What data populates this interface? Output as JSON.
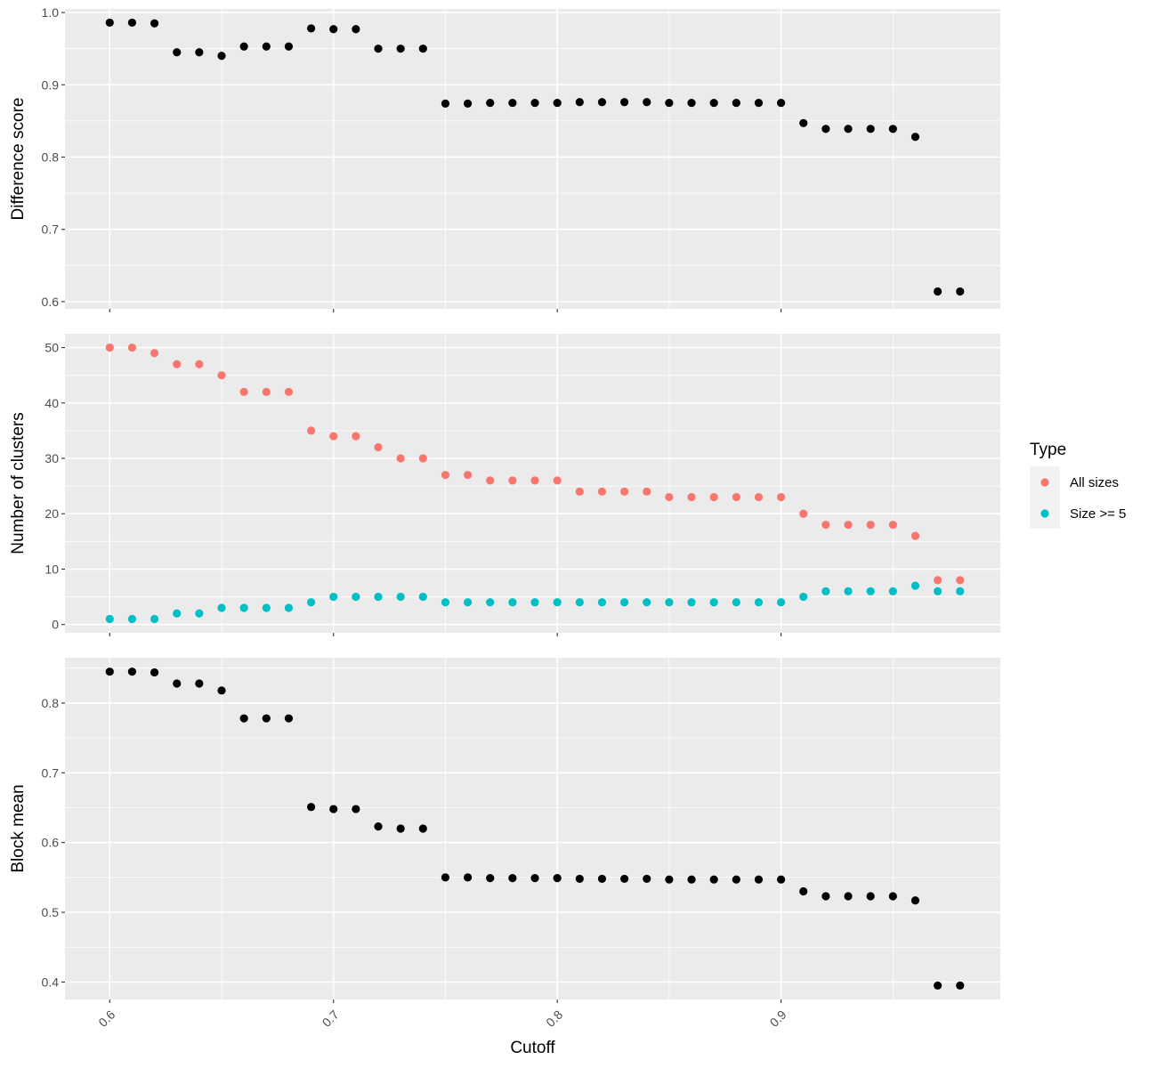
{
  "chart_data": [
    {
      "type": "scatter",
      "ylabel": "Difference score",
      "xlim": [
        0.58,
        0.998
      ],
      "ylim": [
        0.59,
        1.005
      ],
      "yticks": [
        0.6,
        0.7,
        0.8,
        0.9,
        1.0
      ],
      "ytick_labels": [
        "0.6",
        "0.7",
        "0.8",
        "0.9",
        "1.0"
      ],
      "grid": true,
      "series": [
        {
          "color": "#000000",
          "x": [
            0.6,
            0.61,
            0.62,
            0.63,
            0.64,
            0.65,
            0.66,
            0.67,
            0.68,
            0.69,
            0.7,
            0.71,
            0.72,
            0.73,
            0.74,
            0.75,
            0.76,
            0.77,
            0.78,
            0.79,
            0.8,
            0.81,
            0.82,
            0.83,
            0.84,
            0.85,
            0.86,
            0.87,
            0.88,
            0.89,
            0.9,
            0.91,
            0.92,
            0.93,
            0.94,
            0.95,
            0.96,
            0.97,
            0.98
          ],
          "y": [
            0.986,
            0.986,
            0.985,
            0.945,
            0.945,
            0.94,
            0.953,
            0.953,
            0.953,
            0.978,
            0.977,
            0.977,
            0.95,
            0.95,
            0.95,
            0.874,
            0.874,
            0.875,
            0.875,
            0.875,
            0.875,
            0.876,
            0.876,
            0.876,
            0.876,
            0.875,
            0.875,
            0.875,
            0.875,
            0.875,
            0.875,
            0.847,
            0.839,
            0.839,
            0.839,
            0.839,
            0.828,
            0.614,
            0.614
          ]
        }
      ]
    },
    {
      "type": "scatter",
      "ylabel": "Number of clusters",
      "xlim": [
        0.58,
        0.998
      ],
      "ylim": [
        -1.5,
        52.5
      ],
      "yticks": [
        0,
        10,
        20,
        30,
        40,
        50
      ],
      "ytick_labels": [
        "0",
        "10",
        "20",
        "30",
        "40",
        "50"
      ],
      "grid": true,
      "legend": {
        "title": "Type",
        "placement": "right",
        "entries": [
          {
            "label": "All sizes",
            "color": "#F8766D"
          },
          {
            "label": "Size >= 5",
            "color": "#00BFC4"
          }
        ]
      },
      "series": [
        {
          "name": "All sizes",
          "color": "#F8766D",
          "x": [
            0.6,
            0.61,
            0.62,
            0.63,
            0.64,
            0.65,
            0.66,
            0.67,
            0.68,
            0.69,
            0.7,
            0.71,
            0.72,
            0.73,
            0.74,
            0.75,
            0.76,
            0.77,
            0.78,
            0.79,
            0.8,
            0.81,
            0.82,
            0.83,
            0.84,
            0.85,
            0.86,
            0.87,
            0.88,
            0.89,
            0.9,
            0.91,
            0.92,
            0.93,
            0.94,
            0.95,
            0.96,
            0.97,
            0.98
          ],
          "y": [
            50,
            50,
            49,
            47,
            47,
            45,
            42,
            42,
            42,
            35,
            34,
            34,
            32,
            30,
            30,
            27,
            27,
            26,
            26,
            26,
            26,
            24,
            24,
            24,
            24,
            23,
            23,
            23,
            23,
            23,
            23,
            20,
            18,
            18,
            18,
            18,
            16,
            8,
            8
          ]
        },
        {
          "name": "Size >= 5",
          "color": "#00BFC4",
          "x": [
            0.6,
            0.61,
            0.62,
            0.63,
            0.64,
            0.65,
            0.66,
            0.67,
            0.68,
            0.69,
            0.7,
            0.71,
            0.72,
            0.73,
            0.74,
            0.75,
            0.76,
            0.77,
            0.78,
            0.79,
            0.8,
            0.81,
            0.82,
            0.83,
            0.84,
            0.85,
            0.86,
            0.87,
            0.88,
            0.89,
            0.9,
            0.91,
            0.92,
            0.93,
            0.94,
            0.95,
            0.96,
            0.97,
            0.98
          ],
          "y": [
            1,
            1,
            1,
            2,
            2,
            3,
            3,
            3,
            3,
            4,
            5,
            5,
            5,
            5,
            5,
            4,
            4,
            4,
            4,
            4,
            4,
            4,
            4,
            4,
            4,
            4,
            4,
            4,
            4,
            4,
            4,
            5,
            6,
            6,
            6,
            6,
            7,
            6,
            6
          ]
        }
      ]
    },
    {
      "type": "scatter",
      "xlabel": "Cutoff",
      "ylabel": "Block mean",
      "xlim": [
        0.58,
        0.998
      ],
      "ylim": [
        0.375,
        0.865
      ],
      "xticks": [
        0.6,
        0.7,
        0.8,
        0.9
      ],
      "xtick_labels": [
        "0.6",
        "0.7",
        "0.8",
        "0.9"
      ],
      "yticks": [
        0.4,
        0.5,
        0.6,
        0.7,
        0.8
      ],
      "ytick_labels": [
        "0.4",
        "0.5",
        "0.6",
        "0.7",
        "0.8"
      ],
      "grid": true,
      "series": [
        {
          "color": "#000000",
          "x": [
            0.6,
            0.61,
            0.62,
            0.63,
            0.64,
            0.65,
            0.66,
            0.67,
            0.68,
            0.69,
            0.7,
            0.71,
            0.72,
            0.73,
            0.74,
            0.75,
            0.76,
            0.77,
            0.78,
            0.79,
            0.8,
            0.81,
            0.82,
            0.83,
            0.84,
            0.85,
            0.86,
            0.87,
            0.88,
            0.89,
            0.9,
            0.91,
            0.92,
            0.93,
            0.94,
            0.95,
            0.96,
            0.97,
            0.98
          ],
          "y": [
            0.845,
            0.845,
            0.844,
            0.828,
            0.828,
            0.818,
            0.778,
            0.778,
            0.778,
            0.651,
            0.648,
            0.648,
            0.623,
            0.62,
            0.62,
            0.55,
            0.55,
            0.549,
            0.549,
            0.549,
            0.549,
            0.548,
            0.548,
            0.548,
            0.548,
            0.547,
            0.547,
            0.547,
            0.547,
            0.547,
            0.547,
            0.53,
            0.523,
            0.523,
            0.523,
            0.523,
            0.517,
            0.395,
            0.395
          ]
        }
      ]
    }
  ]
}
